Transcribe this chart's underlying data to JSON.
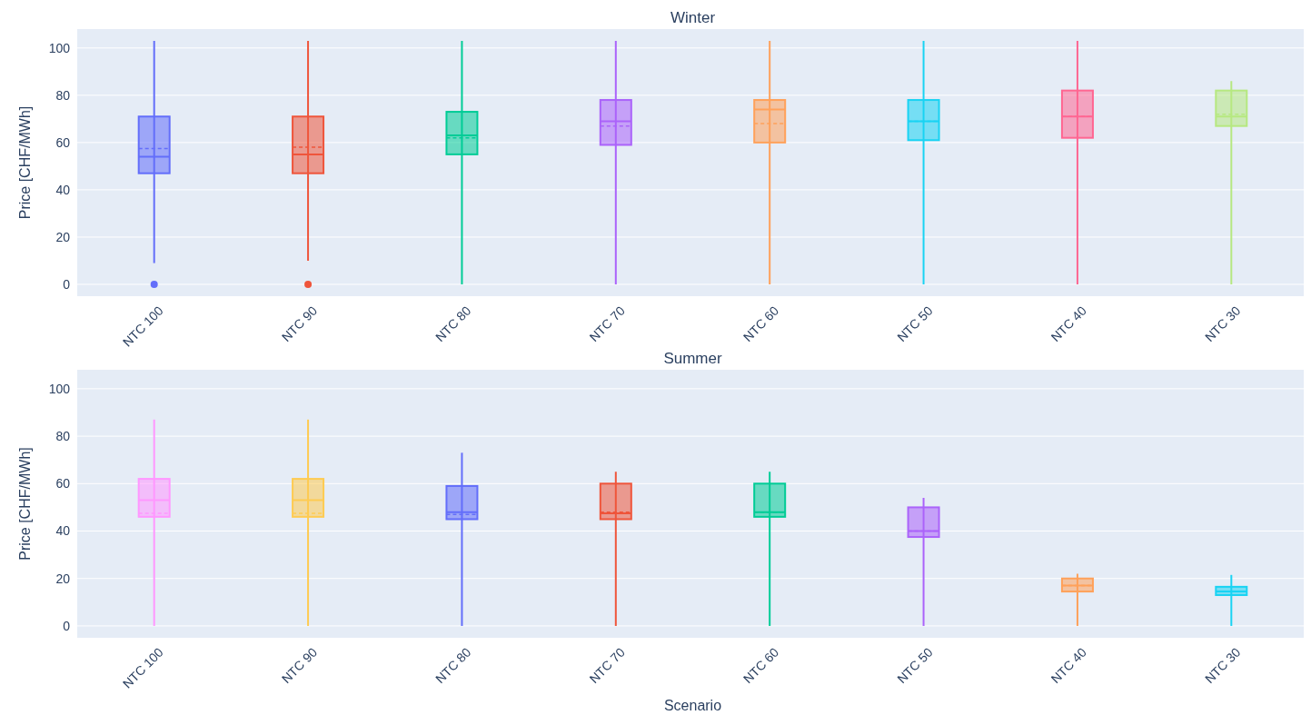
{
  "chart_data": [
    {
      "type": "box",
      "title": "Winter",
      "ylabel": "Price [CHF/MWh]",
      "categories": [
        "NTC 100",
        "NTC 90",
        "NTC 80",
        "NTC 70",
        "NTC 60",
        "NTC 50",
        "NTC 40",
        "NTC 30"
      ],
      "colors": [
        "#636efa",
        "#ef553b",
        "#00cc96",
        "#ab63fa",
        "#ffa15a",
        "#19d3f3",
        "#ff6692",
        "#b6e880"
      ],
      "ylim": [
        -5,
        108
      ],
      "yticks": [
        0,
        20,
        40,
        60,
        80,
        100
      ],
      "grid": "y",
      "boxes": [
        {
          "low": 9,
          "q1": 47,
          "median": 54,
          "q3": 71,
          "high": 103,
          "mean": 57.5,
          "outliers": [
            0
          ]
        },
        {
          "low": 10,
          "q1": 47,
          "median": 55,
          "q3": 71,
          "high": 103,
          "mean": 58,
          "outliers": [
            0
          ]
        },
        {
          "low": 0,
          "q1": 55,
          "median": 63,
          "q3": 73,
          "high": 103,
          "mean": 62
        },
        {
          "low": 0,
          "q1": 59,
          "median": 69,
          "q3": 78,
          "high": 103,
          "mean": 67
        },
        {
          "low": 0,
          "q1": 60,
          "median": 74,
          "q3": 78,
          "high": 103,
          "mean": 68
        },
        {
          "low": 0,
          "q1": 61,
          "median": 69,
          "q3": 78,
          "high": 103,
          "mean": 69
        },
        {
          "low": 0,
          "q1": 62,
          "median": 71,
          "q3": 82,
          "high": 103,
          "mean": 71
        },
        {
          "low": 0,
          "q1": 67,
          "median": 71,
          "q3": 82,
          "high": 86,
          "mean": 72
        }
      ]
    },
    {
      "type": "box",
      "title": "Summer",
      "xlabel": "Scenario",
      "ylabel": "Price [CHF/MWh]",
      "categories": [
        "NTC 100",
        "NTC 90",
        "NTC 80",
        "NTC 70",
        "NTC 60",
        "NTC 50",
        "NTC 40",
        "NTC 30"
      ],
      "colors": [
        "#ff97ff",
        "#fecb52",
        "#636efa",
        "#ef553b",
        "#00cc96",
        "#ab63fa",
        "#ffa15a",
        "#19d3f3"
      ],
      "ylim": [
        -5,
        108
      ],
      "yticks": [
        0,
        20,
        40,
        60,
        80,
        100
      ],
      "grid": "y",
      "boxes": [
        {
          "low": 0,
          "q1": 46,
          "median": 53,
          "q3": 62,
          "high": 87,
          "mean": 47.5
        },
        {
          "low": 0,
          "q1": 46,
          "median": 53,
          "q3": 62,
          "high": 87,
          "mean": 47.5
        },
        {
          "low": 0,
          "q1": 45,
          "median": 48,
          "q3": 59,
          "high": 73,
          "mean": 47
        },
        {
          "low": 0,
          "q1": 45,
          "median": 47.5,
          "q3": 60,
          "high": 65,
          "mean": 48
        },
        {
          "low": 0,
          "q1": 46,
          "median": 48,
          "q3": 60,
          "high": 65,
          "mean": 48
        },
        {
          "low": 0,
          "q1": 37.5,
          "median": 40,
          "q3": 50,
          "high": 54,
          "mean": 40
        },
        {
          "low": 0,
          "q1": 14.5,
          "median": 17,
          "q3": 20,
          "high": 22,
          "mean": 17
        },
        {
          "low": 0,
          "q1": 13,
          "median": 14.5,
          "q3": 16.5,
          "high": 21.5,
          "mean": 14.5
        }
      ]
    }
  ]
}
